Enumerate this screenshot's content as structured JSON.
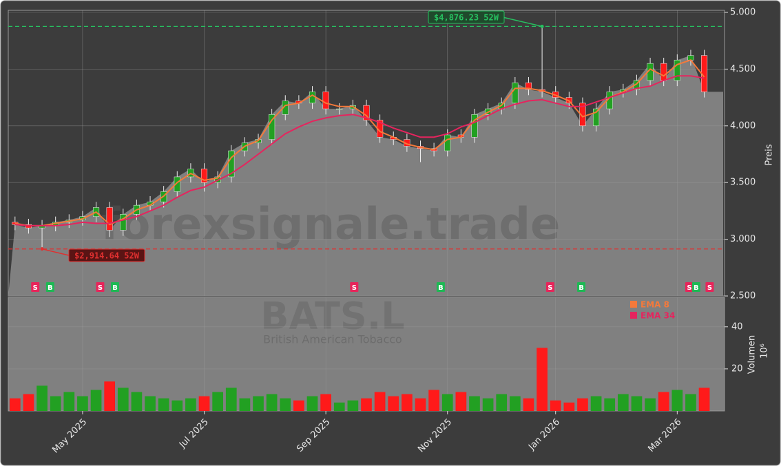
{
  "chart_data": {
    "type": "candlestick",
    "title": "BATS.L",
    "subtitle": "British American Tobacco",
    "watermark": "forexsignale.trade",
    "categories": [
      null,
      null,
      null,
      null,
      null,
      "May 2025",
      null,
      null,
      null,
      null,
      null,
      null,
      null,
      null,
      "Jul 2025",
      null,
      null,
      null,
      null,
      null,
      null,
      null,
      null,
      "Sep 2025",
      null,
      null,
      null,
      null,
      null,
      null,
      null,
      null,
      "Nov 2025",
      null,
      null,
      null,
      null,
      null,
      null,
      null,
      "Jan 2026",
      null,
      null,
      null,
      null,
      null,
      null,
      null,
      null,
      "Mar 2026",
      null,
      null
    ],
    "open": [
      3150,
      3130,
      3100,
      3120,
      3150,
      3170,
      3200,
      3280,
      3080,
      3220,
      3300,
      3330,
      3420,
      3550,
      3620,
      3500,
      3550,
      3780,
      3850,
      3880,
      4100,
      4220,
      4200,
      4300,
      4150,
      4150,
      4180,
      4050,
      3900,
      3880,
      3820,
      3800,
      3780,
      3920,
      3900,
      4100,
      4150,
      4200,
      4380,
      4320,
      4300,
      4250,
      4200,
      4000,
      4150,
      4300,
      4320,
      4400,
      4550,
      4400,
      4580,
      4620
    ],
    "high": [
      3200,
      3180,
      3170,
      3200,
      3220,
      3250,
      3330,
      3330,
      3270,
      3350,
      3380,
      3470,
      3600,
      3670,
      3670,
      3600,
      3830,
      3900,
      3930,
      4150,
      4270,
      4270,
      4350,
      4350,
      4200,
      4230,
      4230,
      4100,
      3950,
      3930,
      3870,
      3850,
      3970,
      3970,
      4150,
      4200,
      4250,
      4430,
      4430,
      4876.23,
      4350,
      4300,
      4250,
      4200,
      4350,
      4370,
      4450,
      4600,
      4600,
      4630,
      4670,
      4670
    ],
    "low": [
      3080,
      3050,
      2914.64,
      3070,
      3100,
      3120,
      3150,
      3020,
      3030,
      3170,
      3250,
      3280,
      3370,
      3500,
      3420,
      3450,
      3500,
      3730,
      3800,
      3830,
      4050,
      4150,
      4150,
      4100,
      4100,
      4100,
      4000,
      3850,
      3830,
      3770,
      3680,
      3730,
      3730,
      3850,
      3850,
      4050,
      4100,
      4150,
      4270,
      4250,
      4200,
      4150,
      3950,
      3950,
      4100,
      4250,
      4270,
      4350,
      4350,
      4350,
      4530,
      4250
    ],
    "close": [
      3130,
      3100,
      3120,
      3150,
      3170,
      3200,
      3280,
      3080,
      3220,
      3300,
      3330,
      3420,
      3550,
      3620,
      3500,
      3550,
      3780,
      3850,
      3880,
      4100,
      4220,
      4200,
      4300,
      4150,
      4150,
      4180,
      4050,
      3900,
      3880,
      3820,
      3800,
      3780,
      3920,
      3900,
      4100,
      4150,
      4200,
      4380,
      4320,
      4300,
      4250,
      4200,
      4000,
      4150,
      4300,
      4320,
      4400,
      4550,
      4400,
      4580,
      4620,
      4300
    ],
    "up_color": "#22a022",
    "down_color": "#ff1a1a",
    "area_color": "#808080",
    "background": "#3c3c3c",
    "ylim": [
      2500,
      5000
    ],
    "yticks": [
      {
        "value": 2500,
        "label": "2.500"
      },
      {
        "value": 3000,
        "label": "3.000"
      },
      {
        "value": 3500,
        "label": "3.500"
      },
      {
        "value": 4000,
        "label": "4.000"
      },
      {
        "value": 4500,
        "label": "4.500"
      },
      {
        "value": 5000,
        "label": "5.000"
      }
    ],
    "ylabel": "Preis",
    "grid": true,
    "series": [
      {
        "name": "EMA 8",
        "color": "#f5793a",
        "values": [
          3140,
          3120,
          3120,
          3140,
          3160,
          3180,
          3240,
          3130,
          3180,
          3260,
          3300,
          3380,
          3500,
          3580,
          3520,
          3540,
          3720,
          3820,
          3870,
          4050,
          4180,
          4200,
          4270,
          4200,
          4170,
          4170,
          4090,
          3950,
          3900,
          3840,
          3810,
          3790,
          3880,
          3900,
          4050,
          4120,
          4180,
          4330,
          4330,
          4310,
          4270,
          4220,
          4080,
          4120,
          4250,
          4300,
          4370,
          4500,
          4440,
          4540,
          4580,
          4430
        ]
      },
      {
        "name": "EMA 34",
        "color": "#e6245e",
        "values": [
          3130,
          3120,
          3120,
          3120,
          3130,
          3150,
          3140,
          3140,
          3170,
          3200,
          3250,
          3300,
          3370,
          3430,
          3460,
          3520,
          3580,
          3660,
          3750,
          3840,
          3930,
          3990,
          4040,
          4070,
          4090,
          4100,
          4070,
          4030,
          3980,
          3940,
          3900,
          3900,
          3930,
          3990,
          4030,
          4090,
          4150,
          4190,
          4220,
          4230,
          4200,
          4170,
          4170,
          4210,
          4250,
          4290,
          4330,
          4350,
          4400,
          4440,
          4440,
          4420
        ]
      }
    ],
    "volume": {
      "values": [
        6,
        8,
        12,
        7,
        9,
        7,
        10,
        14,
        11,
        9,
        7,
        6,
        5,
        6,
        7,
        9,
        11,
        6,
        7,
        8,
        6,
        5,
        7,
        8,
        4,
        5,
        6,
        9,
        7,
        8,
        6,
        10,
        8,
        9,
        7,
        6,
        8,
        7,
        6,
        30,
        5,
        4,
        6,
        7,
        6,
        8,
        7,
        6,
        9,
        10,
        8,
        11
      ],
      "ylim": [
        0,
        54
      ],
      "yticks": [
        20,
        40
      ],
      "ylabel": "Volumen",
      "scale_label": "10⁶"
    },
    "hlines": [
      {
        "value": 4876.23,
        "label": "$4,876.23 52W",
        "color": "#27c060"
      },
      {
        "value": 2914.64,
        "label": "$2,914.64 52W",
        "color": "#e03030"
      }
    ],
    "signals": [
      {
        "x": 1.5,
        "label": "S"
      },
      {
        "x": 2.6,
        "label": "B"
      },
      {
        "x": 6.3,
        "label": "S"
      },
      {
        "x": 7.4,
        "label": "B"
      },
      {
        "x": 25.1,
        "label": "S"
      },
      {
        "x": 31.5,
        "label": "B"
      },
      {
        "x": 39.6,
        "label": "S"
      },
      {
        "x": 41.9,
        "label": "B"
      },
      {
        "x": 49.9,
        "label": "S"
      },
      {
        "x": 50.4,
        "label": "B"
      },
      {
        "x": 51.4,
        "label": "S"
      }
    ],
    "signal_colors": {
      "S": "#e8245a",
      "B": "#1db954"
    }
  }
}
